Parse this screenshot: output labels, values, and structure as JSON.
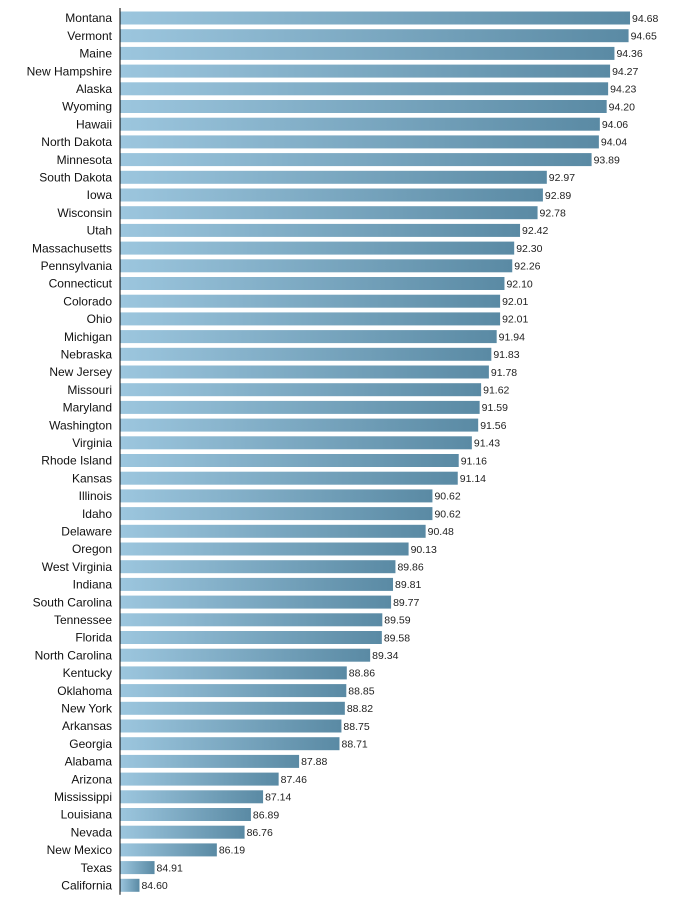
{
  "chart_data": {
    "type": "bar",
    "orientation": "horizontal",
    "title": "",
    "xlabel": "",
    "ylabel": "",
    "grid": false,
    "legend": "none",
    "xlim": [
      84.2,
      94.7
    ],
    "bar_color_light": "#9cc6de",
    "bar_color_dark": "#5a8aa4",
    "categories": [
      "Montana",
      "Vermont",
      "Maine",
      "New Hampshire",
      "Alaska",
      "Wyoming",
      "Hawaii",
      "North Dakota",
      "Minnesota",
      "South Dakota",
      "Iowa",
      "Wisconsin",
      "Utah",
      "Massachusetts",
      "Pennsylvania",
      "Connecticut",
      "Colorado",
      "Ohio",
      "Michigan",
      "Nebraska",
      "New Jersey",
      "Missouri",
      "Maryland",
      "Washington",
      "Virginia",
      "Rhode Island",
      "Kansas",
      "Illinois",
      "Idaho",
      "Delaware",
      "Oregon",
      "West Virginia",
      "Indiana",
      "South Carolina",
      "Tennessee",
      "Florida",
      "North Carolina",
      "Kentucky",
      "Oklahoma",
      "New York",
      "Arkansas",
      "Georgia",
      "Alabama",
      "Arizona",
      "Mississippi",
      "Louisiana",
      "Nevada",
      "New Mexico",
      "Texas",
      "California"
    ],
    "values": [
      94.68,
      94.65,
      94.36,
      94.27,
      94.23,
      94.2,
      94.06,
      94.04,
      93.89,
      92.97,
      92.89,
      92.78,
      92.42,
      92.3,
      92.26,
      92.1,
      92.01,
      92.01,
      91.94,
      91.83,
      91.78,
      91.62,
      91.59,
      91.56,
      91.43,
      91.16,
      91.14,
      90.62,
      90.62,
      90.48,
      90.13,
      89.86,
      89.81,
      89.77,
      89.59,
      89.58,
      89.34,
      88.86,
      88.85,
      88.82,
      88.75,
      88.71,
      87.88,
      87.46,
      87.14,
      86.89,
      86.76,
      86.19,
      84.91,
      84.6
    ],
    "value_labels": [
      "94.68",
      "94.65",
      "94.36",
      "94.27",
      "94.23",
      "94.20",
      "94.06",
      "94.04",
      "93.89",
      "92.97",
      "92.89",
      "92.78",
      "92.42",
      "92.30",
      "92.26",
      "92.10",
      "92.01",
      "92.01",
      "91.94",
      "91.83",
      "91.78",
      "91.62",
      "91.59",
      "91.56",
      "91.43",
      "91.16",
      "91.14",
      "90.62",
      "90.62",
      "90.48",
      "90.13",
      "89.86",
      "89.81",
      "89.77",
      "89.59",
      "89.58",
      "89.34",
      "88.86",
      "88.85",
      "88.82",
      "88.75",
      "88.71",
      "87.88",
      "87.46",
      "87.14",
      "86.89",
      "86.76",
      "86.19",
      "84.91",
      "84.60"
    ]
  }
}
